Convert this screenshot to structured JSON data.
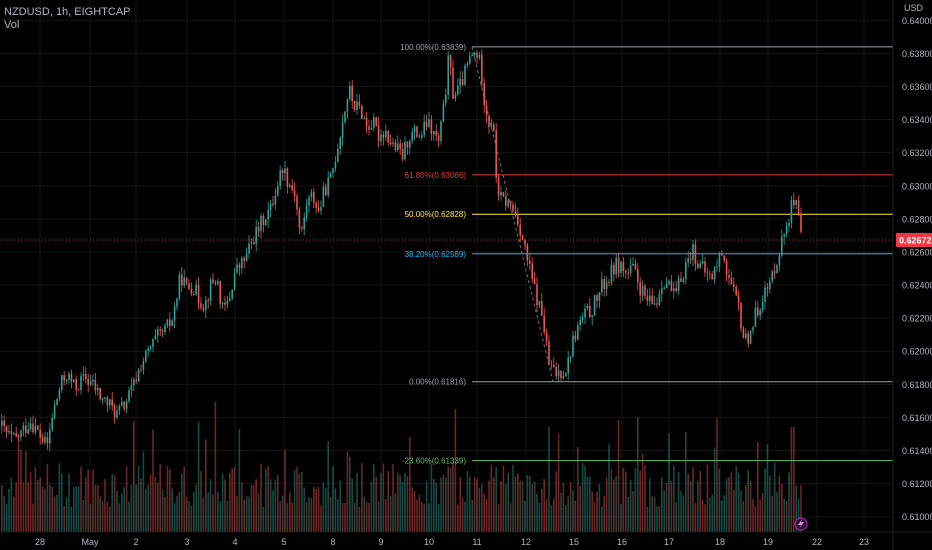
{
  "header": {
    "symbol_line": "NZDUSD, 1h, EIGHTCAP",
    "indicator": "Vol"
  },
  "colors": {
    "up": "#26a69a",
    "down": "#ef5350",
    "background": "#000000",
    "axis_text": "#b2b5be",
    "grid": "#141414"
  },
  "chart_data": {
    "type": "candlestick",
    "symbol": "NZDUSD",
    "timeframe": "1h",
    "exchange": "EIGHTCAP",
    "currency_label": "USD",
    "ylim": [
      0.6095,
      0.6405
    ],
    "y_ticks": [
      "0.64000",
      "0.63800",
      "0.63600",
      "0.63400",
      "0.63200",
      "0.63000",
      "0.62800",
      "0.62600",
      "0.62400",
      "0.62200",
      "0.62000",
      "0.61800",
      "0.61600",
      "0.61400",
      "0.61200",
      "0.61000"
    ],
    "x_ticks": [
      "28",
      "May",
      "2",
      "3",
      "4",
      "5",
      "8",
      "9",
      "10",
      "11",
      "12",
      "15",
      "16",
      "17",
      "18",
      "19",
      "22",
      "23"
    ],
    "current_price": "0.62672",
    "price_path": [
      [
        0,
        0.6155
      ],
      [
        6,
        0.615
      ],
      [
        14,
        0.6146
      ],
      [
        22,
        0.6152
      ],
      [
        30,
        0.6158
      ],
      [
        38,
        0.615
      ],
      [
        46,
        0.6142
      ],
      [
        52,
        0.6162
      ],
      [
        60,
        0.618
      ],
      [
        66,
        0.6186
      ],
      [
        74,
        0.6178
      ],
      [
        84,
        0.6184
      ],
      [
        92,
        0.618
      ],
      [
        100,
        0.6172
      ],
      [
        108,
        0.6168
      ],
      [
        116,
        0.6162
      ],
      [
        124,
        0.6168
      ],
      [
        132,
        0.6178
      ],
      [
        140,
        0.6192
      ],
      [
        148,
        0.62
      ],
      [
        156,
        0.6208
      ],
      [
        164,
        0.6212
      ],
      [
        172,
        0.622
      ],
      [
        180,
        0.6246
      ],
      [
        186,
        0.6238
      ],
      [
        192,
        0.624
      ],
      [
        198,
        0.6232
      ],
      [
        204,
        0.6228
      ],
      [
        210,
        0.624
      ],
      [
        216,
        0.6244
      ],
      [
        222,
        0.6224
      ],
      [
        228,
        0.623
      ],
      [
        234,
        0.6248
      ],
      [
        240,
        0.6252
      ],
      [
        246,
        0.6258
      ],
      [
        252,
        0.6268
      ],
      [
        258,
        0.6274
      ],
      [
        264,
        0.6282
      ],
      [
        270,
        0.6286
      ],
      [
        276,
        0.63
      ],
      [
        282,
        0.6312
      ],
      [
        288,
        0.6302
      ],
      [
        294,
        0.6296
      ],
      [
        300,
        0.6268
      ],
      [
        306,
        0.629
      ],
      [
        312,
        0.6294
      ],
      [
        318,
        0.6284
      ],
      [
        324,
        0.6298
      ],
      [
        330,
        0.6304
      ],
      [
        336,
        0.6322
      ],
      [
        342,
        0.634
      ],
      [
        348,
        0.6358
      ],
      [
        354,
        0.6348
      ],
      [
        360,
        0.6346
      ],
      [
        366,
        0.6336
      ],
      [
        372,
        0.6338
      ],
      [
        378,
        0.633
      ],
      [
        384,
        0.6334
      ],
      [
        390,
        0.6326
      ],
      [
        396,
        0.6322
      ],
      [
        402,
        0.6318
      ],
      [
        408,
        0.633
      ],
      [
        414,
        0.6332
      ],
      [
        420,
        0.633
      ],
      [
        426,
        0.6338
      ],
      [
        432,
        0.6332
      ],
      [
        438,
        0.6326
      ],
      [
        444,
        0.6352
      ],
      [
        448,
        0.6378
      ],
      [
        452,
        0.6356
      ],
      [
        458,
        0.6358
      ],
      [
        464,
        0.6368
      ],
      [
        470,
        0.6378
      ],
      [
        476,
        0.638
      ],
      [
        480,
        0.6372
      ],
      [
        484,
        0.635
      ],
      [
        488,
        0.6338
      ],
      [
        492,
        0.634
      ],
      [
        496,
        0.63
      ],
      [
        500,
        0.6292
      ],
      [
        506,
        0.629
      ],
      [
        512,
        0.6286
      ],
      [
        518,
        0.6278
      ],
      [
        524,
        0.6262
      ],
      [
        530,
        0.6246
      ],
      [
        536,
        0.6232
      ],
      [
        542,
        0.622
      ],
      [
        548,
        0.6192
      ],
      [
        554,
        0.6186
      ],
      [
        560,
        0.6188
      ],
      [
        566,
        0.619
      ],
      [
        572,
        0.6206
      ],
      [
        578,
        0.6216
      ],
      [
        584,
        0.6222
      ],
      [
        590,
        0.6224
      ],
      [
        596,
        0.6232
      ],
      [
        602,
        0.624
      ],
      [
        608,
        0.6244
      ],
      [
        614,
        0.6252
      ],
      [
        620,
        0.6252
      ],
      [
        626,
        0.6246
      ],
      [
        632,
        0.625
      ],
      [
        638,
        0.624
      ],
      [
        644,
        0.6232
      ],
      [
        650,
        0.6228
      ],
      [
        656,
        0.623
      ],
      [
        662,
        0.6244
      ],
      [
        668,
        0.624
      ],
      [
        674,
        0.6232
      ],
      [
        680,
        0.6244
      ],
      [
        686,
        0.6254
      ],
      [
        692,
        0.6262
      ],
      [
        698,
        0.6252
      ],
      [
        704,
        0.6248
      ],
      [
        710,
        0.6244
      ],
      [
        716,
        0.6252
      ],
      [
        722,
        0.6262
      ],
      [
        726,
        0.6248
      ],
      [
        732,
        0.6236
      ],
      [
        738,
        0.6226
      ],
      [
        742,
        0.621
      ],
      [
        746,
        0.6206
      ],
      [
        750,
        0.6214
      ],
      [
        756,
        0.6224
      ],
      [
        762,
        0.6234
      ],
      [
        768,
        0.6238
      ],
      [
        774,
        0.6252
      ],
      [
        780,
        0.6264
      ],
      [
        786,
        0.6278
      ],
      [
        792,
        0.629
      ],
      [
        796,
        0.6286
      ],
      [
        800,
        0.627
      ],
      [
        801,
        0.6267
      ]
    ],
    "fibonacci": [
      {
        "label": "100.00%(0.63839)",
        "value": 0.63839,
        "color": "#9aa0a6"
      },
      {
        "label": "61.80%(0.63066)",
        "value": 0.63066,
        "color": "#e53935"
      },
      {
        "label": "50.00%(0.62828)",
        "value": 0.62828,
        "color": "#ffeb3b"
      },
      {
        "label": "38.20%(0.62589)",
        "value": 0.62589,
        "color": "#29b6f6"
      },
      {
        "label": "0.00%(0.61816)",
        "value": 0.61816,
        "color": "#9aa0a6"
      },
      {
        "label": "-23.60%(0.61339)",
        "value": 0.61339,
        "color": "#66bb6a"
      }
    ],
    "volume_note": "Vol histogram along bottom",
    "grid": true
  }
}
